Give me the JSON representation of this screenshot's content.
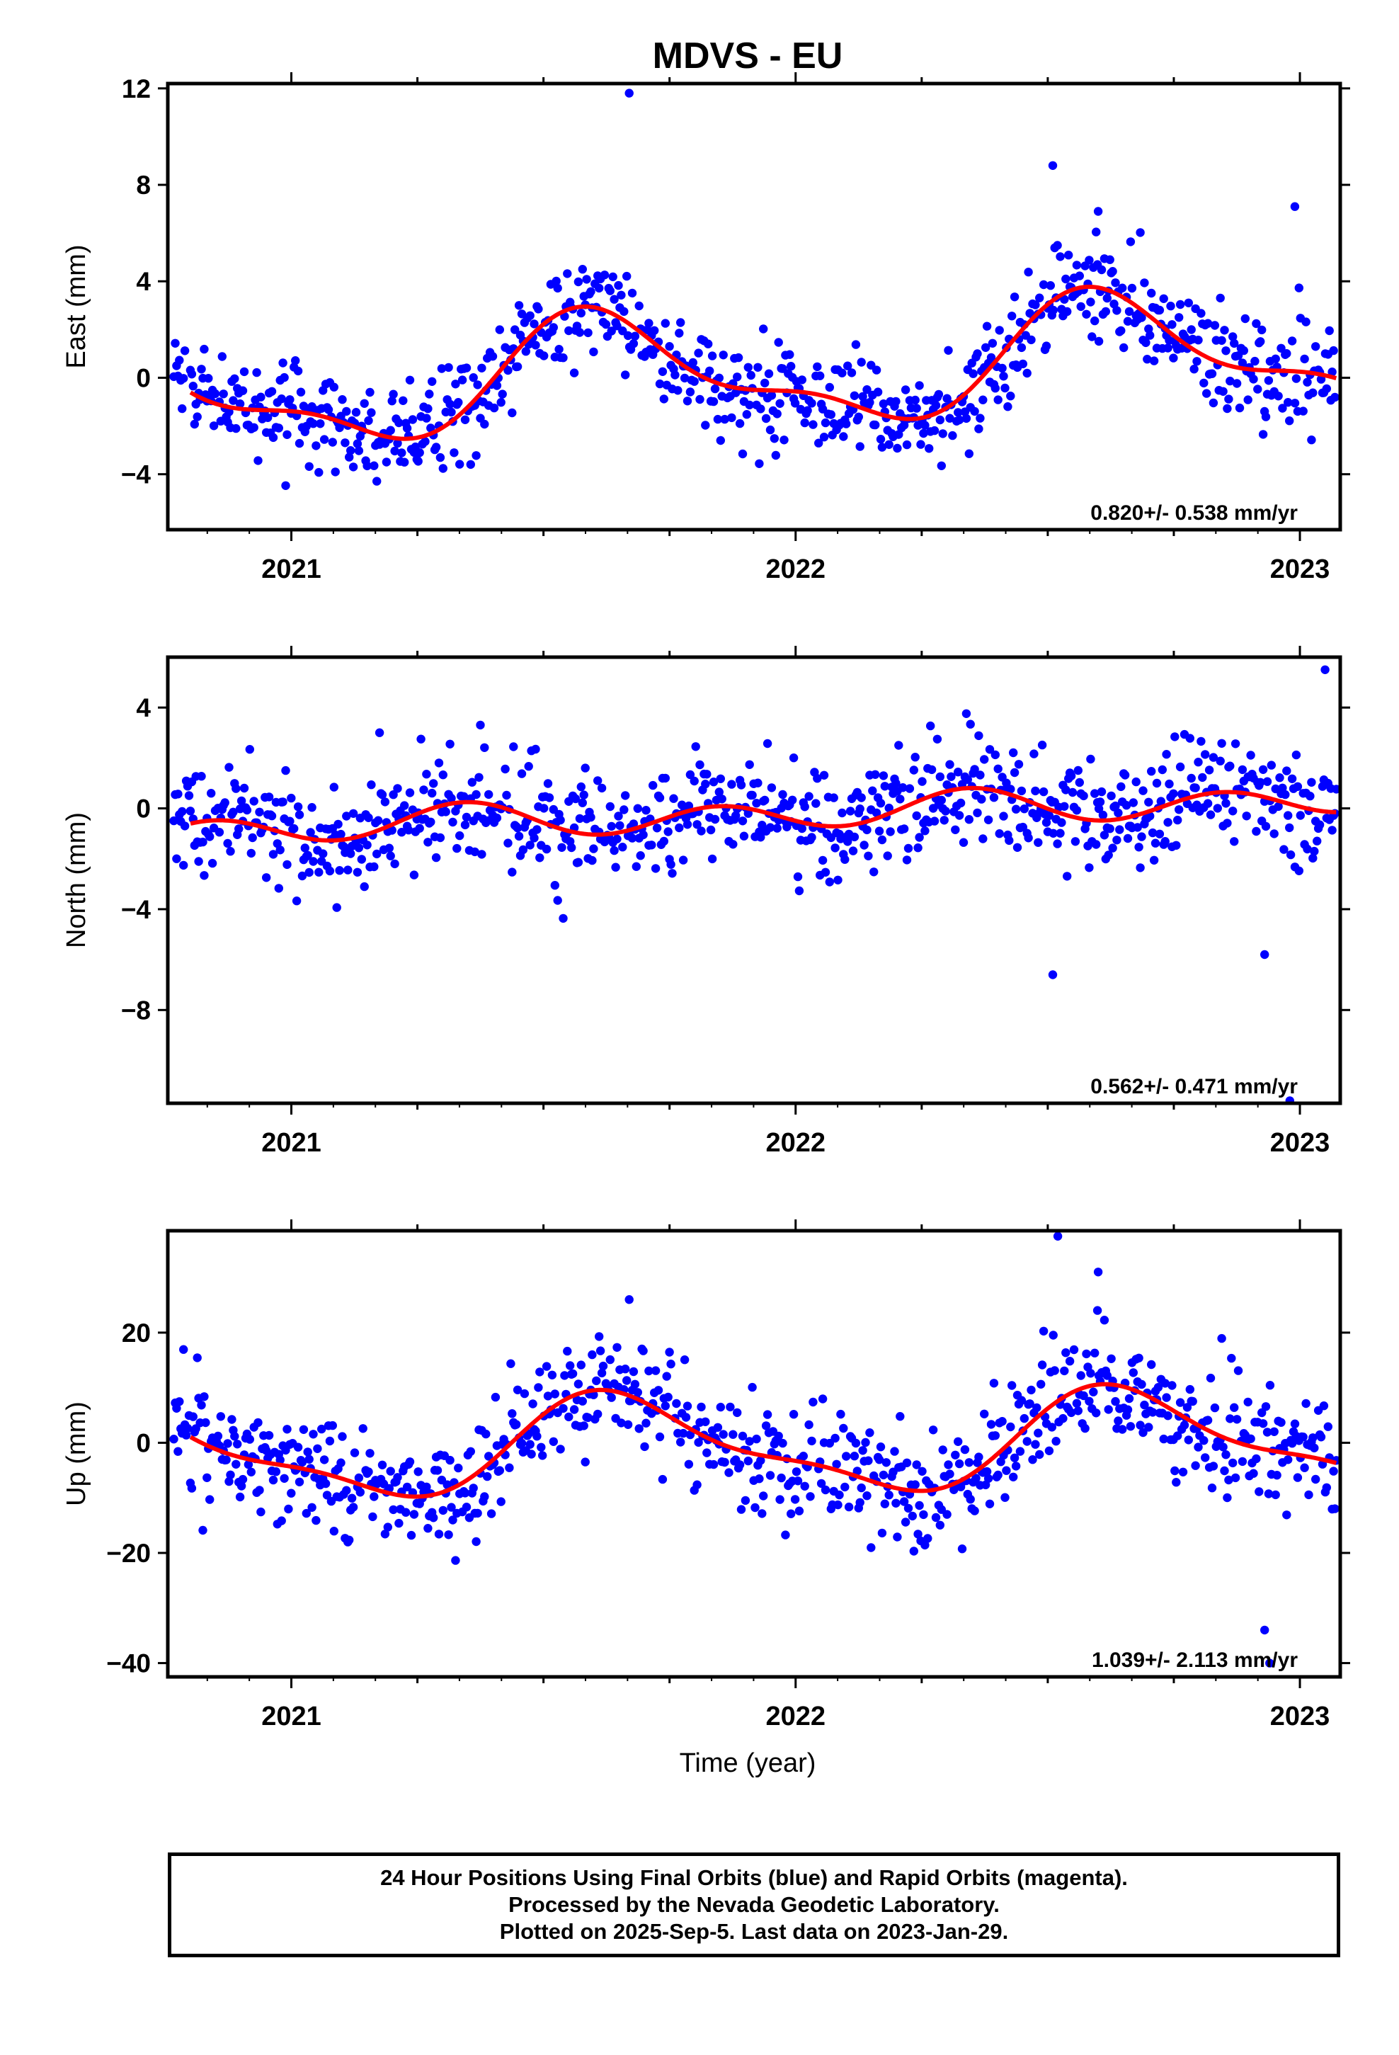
{
  "figure": {
    "title": "MDVS - EU",
    "xlabel": "Time (year)"
  },
  "chart_data": [
    {
      "type": "scatter",
      "ylabel": "East (mm)",
      "ylim": [
        -6.3,
        12.2
      ],
      "yticks": [
        12,
        8,
        4,
        0,
        -4
      ],
      "xlim": [
        2020.755,
        2023.08
      ],
      "xticks": [
        2021,
        2022,
        2023
      ],
      "xtick_labels": [
        "2021",
        "2022",
        "2023"
      ],
      "rate_text": "0.820+/- 0.538 mm/yr",
      "series": [
        {
          "kind": "points",
          "color": "#0000ff",
          "model": {
            "offset": 0.25,
            "trend": 0.82,
            "annual": [
              -1.5,
              -1.6
            ],
            "semi": [
              0.55,
              0.7
            ]
          },
          "noise": 1.05,
          "outliers": [
            [
              2021.67,
              11.8
            ],
            [
              2022.51,
              8.8
            ],
            [
              2022.6,
              6.9
            ],
            [
              2022.99,
              7.1
            ]
          ]
        },
        {
          "kind": "fit",
          "color": "#ff0000",
          "model": {
            "offset": 0.25,
            "trend": 0.82,
            "annual": [
              -1.5,
              -1.6
            ],
            "semi": [
              0.55,
              0.7
            ]
          }
        }
      ]
    },
    {
      "type": "scatter",
      "ylabel": "North (mm)",
      "ylim": [
        -11.7,
        6.0
      ],
      "yticks": [
        4,
        0,
        -4,
        -8
      ],
      "xlim": [
        2020.755,
        2023.08
      ],
      "xticks": [
        2021,
        2022,
        2023
      ],
      "xtick_labels": [
        "2021",
        "2022",
        "2023"
      ],
      "rate_text": "0.562+/- 0.471 mm/yr",
      "series": [
        {
          "kind": "points",
          "color": "#0000ff",
          "model": {
            "offset": -0.25,
            "trend": 0.56,
            "annual": [
              0.2,
              -0.1
            ],
            "semi": [
              -0.55,
              -0.2
            ]
          },
          "noise": 1.1,
          "outliers": [
            [
              2022.51,
              -6.6
            ],
            [
              2022.93,
              -5.8
            ],
            [
              2022.98,
              -11.6
            ],
            [
              2023.05,
              5.5
            ]
          ]
        },
        {
          "kind": "fit",
          "color": "#ff0000",
          "model": {
            "offset": -0.25,
            "trend": 0.56,
            "annual": [
              0.2,
              -0.1
            ],
            "semi": [
              -0.55,
              -0.2
            ]
          }
        }
      ]
    },
    {
      "type": "scatter",
      "ylabel": "Up (mm)",
      "ylim": [
        -42.5,
        38.5
      ],
      "yticks": [
        20,
        0,
        -20,
        -40
      ],
      "xlim": [
        2020.755,
        2023.08
      ],
      "xticks": [
        2021,
        2022,
        2023
      ],
      "xtick_labels": [
        "2021",
        "2022",
        "2023"
      ],
      "rate_text": "1.039+/- 2.113 mm/yr",
      "series": [
        {
          "kind": "points",
          "color": "#0000ff",
          "model": {
            "offset": -0.5,
            "trend": 1.04,
            "annual": [
              -7.0,
              -4.5
            ],
            "semi": [
              2.2,
              1.6
            ]
          },
          "noise": 5.2,
          "outliers": [
            [
              2022.52,
              37.5
            ],
            [
              2022.6,
              31.0
            ],
            [
              2021.67,
              26.0
            ],
            [
              2022.93,
              -34.0
            ],
            [
              2022.94,
              -40.0
            ]
          ]
        },
        {
          "kind": "fit",
          "color": "#ff0000",
          "model": {
            "offset": -0.5,
            "trend": 1.04,
            "annual": [
              -7.0,
              -4.5
            ],
            "semi": [
              2.2,
              1.6
            ]
          }
        }
      ]
    }
  ],
  "footer": {
    "line1": "24 Hour Positions Using Final Orbits (blue) and Rapid Orbits (magenta).",
    "line2": "Processed by the Nevada Geodetic Laboratory.",
    "line3": "Plotted on 2025-Sep-5. Last data on 2023-Jan-29."
  }
}
